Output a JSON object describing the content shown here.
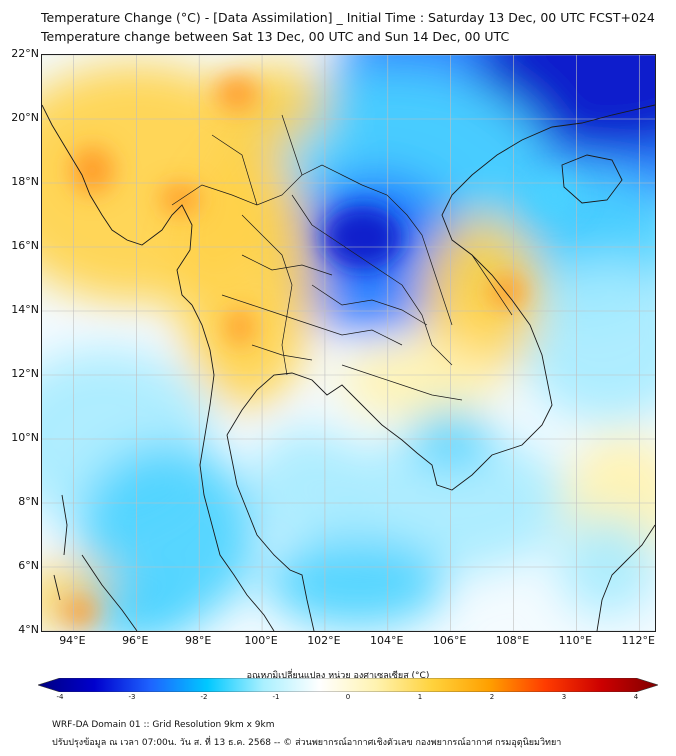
{
  "title_line1": "Temperature Change (°C) - [Data Assimilation] _ Initial Time : Saturday 13 Dec, 00 UTC FCST+024",
  "title_line2": "Temperature change between Sat 13 Dec, 00 UTC and Sun 14 Dec, 00 UTC",
  "lat_labels": [
    "22°N",
    "20°N",
    "18°N",
    "16°N",
    "14°N",
    "12°N",
    "10°N",
    "8°N",
    "6°N",
    "4°N"
  ],
  "lon_labels": [
    "94°E",
    "96°E",
    "98°E",
    "100°E",
    "102°E",
    "104°E",
    "106°E",
    "108°E",
    "110°E",
    "112°E"
  ],
  "colorbar": {
    "title": "อุณหภูมิเปลี่ยนแปลง หน่วย องศาเซลเซียส (°C)",
    "ticks": [
      "-4",
      "-3",
      "-2",
      "-1",
      "0",
      "1",
      "2",
      "3",
      "4"
    ],
    "range": [
      -4,
      4
    ],
    "colors": [
      "#00007f",
      "#0000cd",
      "#1e64ff",
      "#00c8ff",
      "#aaf0ff",
      "#ffffff",
      "#fff3b0",
      "#ffd23c",
      "#ffa000",
      "#ff3c00",
      "#cc0000",
      "#800000"
    ]
  },
  "footer_line1": "WRF-DA Domain 01 :: Grid Resolution 9km x 9km",
  "footer_line2": "ปรับปรุงข้อมูล ณ เวลา 07:00น. วัน ส. ที่ 13 ธ.ค. 2568 -- © ส่วนพยากรณ์อากาศเชิงตัวเลข กองพยากรณ์อากาศ กรมอุตุนิยมวิทยา",
  "map": {
    "lat_range": [
      4,
      22
    ],
    "lon_range": [
      93,
      112.5
    ],
    "colors": {
      "cold_deep": "#0a14c8",
      "cold": "#1e78ff",
      "cool": "#4ad2ff",
      "cool_light": "#a8ecff",
      "neutral": "#f4fbff",
      "warm_light": "#fff2b0",
      "warm": "#ffd24a",
      "hot": "#ff9a28",
      "land_border": "#1a1a1a",
      "grid": "#bfbfbf"
    }
  }
}
